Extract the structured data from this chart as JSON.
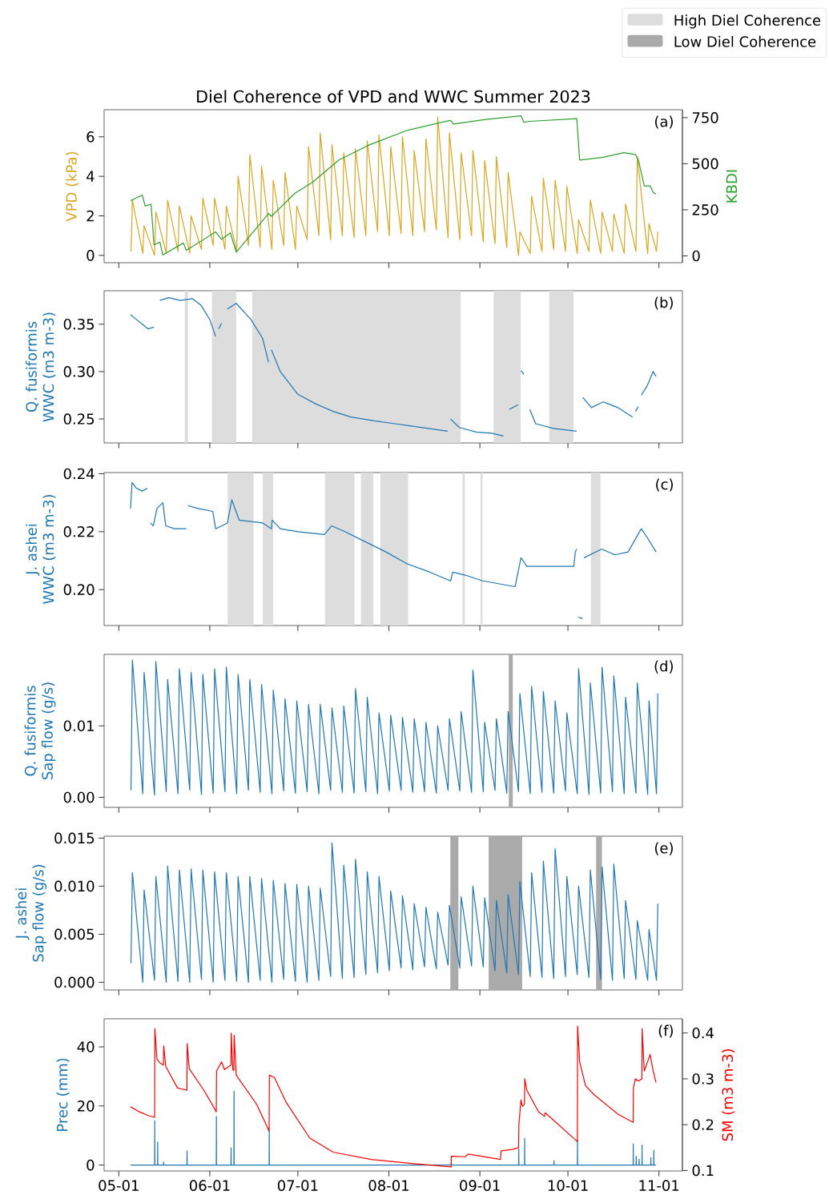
{
  "chart_data": [
    {
      "type": "line",
      "title": "Diel Coherence of VPD and WWC Summer 2023",
      "ylabel": "VPD (kPa)",
      "y2label": "KBDI",
      "annotations": [
        "(a)"
      ],
      "tick_labels": "y",
      "xlim": [
        "2023-04-26",
        "2023-11-09"
      ],
      "ylim": [
        -0.37,
        7.37
      ],
      "y2lim": [
        -37,
        793
      ],
      "xticks": [
        {
          "value": "2023-05-01",
          "label": null
        },
        {
          "value": "2023-06-01",
          "label": null
        },
        {
          "value": "2023-07-01",
          "label": null
        },
        {
          "value": "2023-08-01",
          "label": null
        },
        {
          "value": "2023-09-01",
          "label": null
        },
        {
          "value": "2023-10-01",
          "label": null
        },
        {
          "value": "2023-11-01",
          "label": null
        }
      ],
      "yticks": [
        0,
        2,
        4,
        6
      ],
      "y2ticks": [
        0,
        250,
        500,
        750
      ],
      "x": [
        "2023-05-05T04:00",
        "2023-05-05T15:00",
        "2023-05-09T04:00",
        "2023-05-09T15:00",
        "2023-05-13T04:00",
        "2023-05-13T15:00",
        "2023-05-17T04:00",
        "2023-05-17T15:00",
        "2023-05-21T04:00",
        "2023-05-21T15:00",
        "2023-05-25T04:00",
        "2023-05-25T15:00",
        "2023-05-29T04:00",
        "2023-05-29T15:00",
        "2023-06-02T04:00",
        "2023-06-02T15:00",
        "2023-06-06T04:00",
        "2023-06-06T15:00",
        "2023-06-10T04:00",
        "2023-06-10T15:00",
        "2023-06-14T04:00",
        "2023-06-14T15:00",
        "2023-06-18T04:00",
        "2023-06-18T15:00",
        "2023-06-22T04:00",
        "2023-06-22T15:00",
        "2023-06-26T04:00",
        "2023-06-26T15:00",
        "2023-06-30T04:00",
        "2023-06-30T15:00",
        "2023-07-04T04:00",
        "2023-07-04T15:00",
        "2023-07-08T04:00",
        "2023-07-08T15:00",
        "2023-07-12T04:00",
        "2023-07-12T15:00",
        "2023-07-16T04:00",
        "2023-07-16T15:00",
        "2023-07-20T04:00",
        "2023-07-20T15:00",
        "2023-07-24T04:00",
        "2023-07-24T15:00",
        "2023-07-28T04:00",
        "2023-07-28T15:00",
        "2023-08-01T04:00",
        "2023-08-01T15:00",
        "2023-08-05T04:00",
        "2023-08-05T15:00",
        "2023-08-09T04:00",
        "2023-08-09T15:00",
        "2023-08-13T04:00",
        "2023-08-13T15:00",
        "2023-08-17T04:00",
        "2023-08-17T15:00",
        "2023-08-21T04:00",
        "2023-08-21T15:00",
        "2023-08-25T04:00",
        "2023-08-25T15:00",
        "2023-08-29T04:00",
        "2023-08-29T15:00",
        "2023-09-02T04:00",
        "2023-09-02T15:00",
        "2023-09-06T04:00",
        "2023-09-06T15:00",
        "2023-09-10T04:00",
        "2023-09-10T15:00",
        "2023-09-14T04:00",
        "2023-09-14T15:00",
        "2023-09-18T04:00",
        "2023-09-18T15:00",
        "2023-09-22T04:00",
        "2023-09-22T15:00",
        "2023-09-26T04:00",
        "2023-09-26T15:00",
        "2023-09-30T04:00",
        "2023-09-30T15:00",
        "2023-10-04T04:00",
        "2023-10-04T15:00",
        "2023-10-08T04:00",
        "2023-10-08T15:00",
        "2023-10-12T04:00",
        "2023-10-12T15:00",
        "2023-10-16T04:00",
        "2023-10-16T15:00",
        "2023-10-20T04:00",
        "2023-10-20T15:00",
        "2023-10-24T04:00",
        "2023-10-24T15:00",
        "2023-10-28T04:00",
        "2023-10-28T15:00",
        "2023-10-31T04:00",
        "2023-10-31T15:00"
      ],
      "series": [
        {
          "color": "#daa520",
          "values": [
            0.2,
            2.8,
            0.1,
            1.5,
            0.0,
            2.2,
            0.1,
            2.8,
            0.2,
            2.5,
            0.1,
            2.0,
            0.3,
            2.9,
            0.5,
            2.9,
            0.3,
            2.5,
            0.2,
            4.0,
            0.5,
            5.1,
            0.4,
            4.5,
            0.3,
            3.8,
            0.5,
            4.2,
            0.3,
            2.5,
            0.8,
            5.5,
            1.0,
            6.2,
            0.8,
            5.6,
            1.0,
            5.2,
            0.9,
            5.4,
            1.0,
            5.8,
            1.2,
            6.1,
            1.0,
            5.5,
            1.1,
            6.0,
            1.0,
            5.3,
            1.2,
            5.9,
            1.3,
            7.0,
            0.9,
            6.2,
            0.8,
            5.2,
            1.0,
            5.3,
            0.7,
            4.8,
            0.6,
            5.0,
            0.4,
            4.2,
            0.0,
            1.2,
            0.1,
            3.0,
            0.2,
            3.9,
            0.3,
            3.8,
            0.2,
            3.5,
            0.1,
            1.8,
            0.2,
            2.8,
            0.1,
            2.2,
            0.2,
            2.1,
            0.1,
            2.6,
            0.2,
            5.0,
            0.1,
            1.6,
            0.2,
            1.2
          ]
        },
        {
          "color": "#2ca02c",
          "axis": "y2",
          "x": [
            "2023-05-05",
            "2023-05-09",
            "2023-05-10",
            "2023-05-12",
            "2023-05-13",
            "2023-05-15",
            "2023-05-16",
            "2023-05-23",
            "2023-05-24",
            "2023-06-03",
            "2023-06-05",
            "2023-06-08",
            "2023-06-10",
            "2023-06-21",
            "2023-06-22",
            "2023-06-30",
            "2023-07-06",
            "2023-07-15",
            "2023-07-25",
            "2023-08-07",
            "2023-08-19",
            "2023-08-22",
            "2023-08-23",
            "2023-09-03",
            "2023-09-15",
            "2023-09-16",
            "2023-09-18",
            "2023-10-04",
            "2023-10-05",
            "2023-10-13",
            "2023-10-20",
            "2023-10-24",
            "2023-10-25",
            "2023-10-27",
            "2023-10-29",
            "2023-10-30",
            "2023-10-31"
          ],
          "values": [
            300,
            330,
            270,
            280,
            60,
            75,
            5,
            70,
            30,
            130,
            90,
            125,
            20,
            230,
            215,
            340,
            400,
            520,
            600,
            680,
            725,
            735,
            715,
            740,
            760,
            725,
            730,
            745,
            520,
            535,
            560,
            550,
            520,
            380,
            380,
            345,
            335
          ]
        }
      ]
    },
    {
      "type": "line",
      "ylabel": "Q. fusiformis\nWWC (m3 m-3)",
      "annotations": [
        "(b)"
      ],
      "tick_labels": "y",
      "legend": "top right",
      "xlim": [
        "2023-04-26",
        "2023-11-09"
      ],
      "ylim": [
        0.2247,
        0.3853
      ],
      "xticks": [
        {
          "value": "2023-05-01",
          "label": null
        },
        {
          "value": "2023-06-01",
          "label": null
        },
        {
          "value": "2023-07-01",
          "label": null
        },
        {
          "value": "2023-08-01",
          "label": null
        },
        {
          "value": "2023-09-01",
          "label": null
        },
        {
          "value": "2023-10-01",
          "label": null
        },
        {
          "value": "2023-11-01",
          "label": null
        }
      ],
      "yticks": [
        {
          "value": 0.25,
          "label": "0.25"
        },
        {
          "value": 0.3,
          "label": "0.30"
        },
        {
          "value": 0.35,
          "label": "0.35"
        }
      ],
      "bands": [
        {
          "axis": "x",
          "from": "2023-05-23T10:00",
          "to": "2023-05-24T14:00",
          "color": "#dddddd",
          "label": "High Diel Coherence"
        },
        {
          "axis": "x",
          "from": "2023-06-01T17:00",
          "to": "2023-06-10T00:00",
          "color": "#dddddd"
        },
        {
          "axis": "x",
          "from": "2023-06-15T10:00",
          "to": "2023-08-25T12:00",
          "color": "#dddddd"
        },
        {
          "axis": "x",
          "from": "2023-09-05T17:00",
          "to": "2023-09-14T22:00",
          "color": "#dddddd"
        },
        {
          "axis": "x",
          "from": "2023-09-24T14:00",
          "to": "2023-10-02T22:00",
          "color": "#dddddd"
        }
      ],
      "series": [
        {
          "color": "#1f77b4",
          "x": [
            "2023-05-05",
            "2023-05-07",
            "2023-05-09",
            "2023-05-11",
            "2023-05-13",
            "2023-05-14",
            "2023-05-15",
            "2023-05-18",
            "2023-05-22",
            "2023-05-26",
            "2023-05-29",
            "2023-06-01",
            "2023-06-03",
            "2023-06-03T12:00",
            "2023-06-04",
            "2023-06-05",
            "2023-06-05T12:00",
            "2023-06-07",
            "2023-06-10",
            "2023-06-15",
            "2023-06-19",
            "2023-06-21",
            "2023-06-21T12:00",
            "2023-06-22",
            "2023-06-25",
            "2023-07-01",
            "2023-07-07",
            "2023-07-13",
            "2023-07-19",
            "2023-07-27",
            "2023-08-03",
            "2023-08-12",
            "2023-08-21",
            "2023-08-21T12:00",
            "2023-08-22",
            "2023-08-25",
            "2023-08-31",
            "2023-09-05",
            "2023-09-09",
            "2023-09-10T12:00",
            "2023-09-11",
            "2023-09-14",
            "2023-09-14T12:00",
            "2023-09-15",
            "2023-09-16",
            "2023-09-16T12:00",
            "2023-09-18",
            "2023-09-20",
            "2023-09-26",
            "2023-10-04",
            "2023-10-04T12:00",
            "2023-10-06",
            "2023-10-09",
            "2023-10-13",
            "2023-10-18",
            "2023-10-23",
            "2023-10-23T12:00",
            "2023-10-24",
            "2023-10-25",
            "2023-10-25T12:00",
            "2023-10-26",
            "2023-10-28",
            "2023-10-30",
            "2023-10-31"
          ],
          "values": [
            0.36,
            0.355,
            0.35,
            0.345,
            0.347,
            null,
            0.375,
            0.378,
            0.375,
            0.377,
            0.37,
            0.355,
            0.337,
            null,
            0.345,
            0.351,
            null,
            0.366,
            0.372,
            0.355,
            0.335,
            0.31,
            null,
            0.323,
            0.3,
            0.276,
            0.266,
            0.258,
            0.252,
            0.248,
            0.245,
            0.241,
            0.237,
            null,
            0.25,
            0.241,
            0.236,
            0.235,
            0.232,
            null,
            0.26,
            0.265,
            null,
            0.301,
            0.297,
            null,
            0.26,
            0.245,
            0.24,
            0.237,
            null,
            0.273,
            0.262,
            0.268,
            0.262,
            0.252,
            null,
            0.258,
            0.263,
            null,
            0.275,
            0.285,
            0.3,
            0.295
          ]
        }
      ]
    },
    {
      "type": "line",
      "ylabel": "J. ashei\nWWC (m3 m-3)",
      "annotations": [
        "(c)"
      ],
      "tick_labels": "y",
      "xlim": [
        "2023-04-26",
        "2023-11-09"
      ],
      "ylim": [
        0.1876,
        0.2404
      ],
      "xticks": [
        {
          "value": "2023-05-01",
          "label": null
        },
        {
          "value": "2023-06-01",
          "label": null
        },
        {
          "value": "2023-07-01",
          "label": null
        },
        {
          "value": "2023-08-01",
          "label": null
        },
        {
          "value": "2023-09-01",
          "label": null
        },
        {
          "value": "2023-10-01",
          "label": null
        },
        {
          "value": "2023-11-01",
          "label": null
        }
      ],
      "yticks": [
        {
          "value": 0.2,
          "label": "0.20"
        },
        {
          "value": 0.22,
          "label": "0.22"
        },
        {
          "value": 0.24,
          "label": "0.24"
        }
      ],
      "bands": [
        {
          "axis": "x",
          "from": "2023-06-07T02:00",
          "to": "2023-06-15T22:00",
          "color": "#dddddd"
        },
        {
          "axis": "x",
          "from": "2023-06-19T00:00",
          "to": "2023-06-22T14:00",
          "color": "#dddddd"
        },
        {
          "axis": "x",
          "from": "2023-07-10T05:00",
          "to": "2023-07-20T07:00",
          "color": "#dddddd"
        },
        {
          "axis": "x",
          "from": "2023-07-22T12:00",
          "to": "2023-07-26T17:00",
          "color": "#dddddd"
        },
        {
          "axis": "x",
          "from": "2023-07-29T02:00",
          "to": "2023-08-07T14:00",
          "color": "#dddddd"
        },
        {
          "axis": "x",
          "from": "2023-08-26T02:00",
          "to": "2023-08-26T22:00",
          "color": "#dddddd"
        },
        {
          "axis": "x",
          "from": "2023-09-01T05:00",
          "to": "2023-09-01T22:00",
          "color": "#dddddd"
        },
        {
          "axis": "x",
          "from": "2023-10-08T19:00",
          "to": "2023-10-12T02:00",
          "color": "#dddddd"
        }
      ],
      "series": [
        {
          "color": "#1f77b4",
          "x": [
            "2023-05-05",
            "2023-05-05T12:00",
            "2023-05-07",
            "2023-05-09",
            "2023-05-10T18:00",
            "2023-05-11T06:00",
            "2023-05-11T18:00",
            "2023-05-12T18:00",
            "2023-05-14",
            "2023-05-16",
            "2023-05-17",
            "2023-05-20",
            "2023-05-24",
            "2023-05-24T06:00",
            "2023-05-24T14:00",
            "2023-05-28",
            "2023-06-02",
            "2023-06-03",
            "2023-06-07",
            "2023-06-08T12:00",
            "2023-06-11",
            "2023-06-19",
            "2023-06-22",
            "2023-06-22T06:00",
            "2023-06-25",
            "2023-07-01",
            "2023-07-10",
            "2023-07-12T12:00",
            "2023-07-17",
            "2023-07-23",
            "2023-07-31",
            "2023-08-07",
            "2023-08-15",
            "2023-08-22",
            "2023-08-22T18:00",
            "2023-08-27",
            "2023-09-02",
            "2023-09-13",
            "2023-09-15",
            "2023-09-17",
            "2023-10-03",
            "2023-10-03T12:00",
            "2023-10-04",
            "2023-10-04T06:00",
            "2023-10-04T12:00",
            "2023-10-06T00:00",
            "2023-10-06T06:00",
            "2023-10-06T12:00",
            "2023-10-12T12:00",
            "2023-10-17",
            "2023-10-21T12:00",
            "2023-10-26",
            "2023-10-28",
            "2023-10-31"
          ],
          "values": [
            0.228,
            0.237,
            0.235,
            0.234,
            0.235,
            null,
            0.223,
            0.222,
            0.228,
            0.23,
            0.222,
            0.221,
            0.221,
            null,
            0.229,
            0.228,
            0.227,
            0.221,
            0.223,
            0.231,
            0.224,
            0.223,
            0.221,
            0.224,
            0.221,
            0.22,
            0.219,
            0.222,
            0.22,
            0.217,
            0.213,
            0.209,
            0.206,
            0.203,
            0.206,
            0.205,
            0.203,
            0.201,
            0.211,
            0.208,
            0.208,
            0.213,
            0.214,
            null,
            0.1905,
            0.19,
            null,
            0.211,
            0.214,
            0.212,
            0.213,
            0.221,
            0.218,
            0.213
          ]
        }
      ]
    },
    {
      "type": "line",
      "ylabel": "Q. fusiformis\nSap flow (g/s)",
      "annotations": [
        "(d)"
      ],
      "tick_labels": "y",
      "legend": "top right",
      "xlim": [
        "2023-04-26",
        "2023-11-09"
      ],
      "ylim": [
        -0.0014,
        0.02
      ],
      "xticks": [
        {
          "value": "2023-05-01",
          "label": null
        },
        {
          "value": "2023-06-01",
          "label": null
        },
        {
          "value": "2023-07-01",
          "label": null
        },
        {
          "value": "2023-08-01",
          "label": null
        },
        {
          "value": "2023-09-01",
          "label": null
        },
        {
          "value": "2023-10-01",
          "label": null
        },
        {
          "value": "2023-11-01",
          "label": null
        }
      ],
      "yticks": [
        {
          "value": 0,
          "label": "0.00"
        },
        {
          "value": 0.01,
          "label": "0.01"
        }
      ],
      "bands": [
        {
          "axis": "x",
          "from": "2023-09-10T20:00",
          "to": "2023-09-12T05:00",
          "color": "#aaaaaa",
          "label": "Low Diel Coherence"
        }
      ],
      "x": [
        "2023-05-05T04:00",
        "2023-05-05T15:00",
        "2023-05-09T04:00",
        "2023-05-09T15:00",
        "2023-05-13T04:00",
        "2023-05-13T15:00",
        "2023-05-17T04:00",
        "2023-05-17T15:00",
        "2023-05-21T04:00",
        "2023-05-21T15:00",
        "2023-05-25T04:00",
        "2023-05-25T15:00",
        "2023-05-29T04:00",
        "2023-05-29T15:00",
        "2023-06-02T04:00",
        "2023-06-02T15:00",
        "2023-06-06T04:00",
        "2023-06-06T15:00",
        "2023-06-10T04:00",
        "2023-06-10T15:00",
        "2023-06-14T04:00",
        "2023-06-14T15:00",
        "2023-06-18T04:00",
        "2023-06-18T15:00",
        "2023-06-22T04:00",
        "2023-06-22T15:00",
        "2023-06-26T04:00",
        "2023-06-26T15:00",
        "2023-06-30T04:00",
        "2023-06-30T15:00",
        "2023-07-04T04:00",
        "2023-07-04T15:00",
        "2023-07-08T04:00",
        "2023-07-08T15:00",
        "2023-07-12T04:00",
        "2023-07-12T15:00",
        "2023-07-16T04:00",
        "2023-07-16T15:00",
        "2023-07-20T04:00",
        "2023-07-20T15:00",
        "2023-07-24T04:00",
        "2023-07-24T15:00",
        "2023-07-28T04:00",
        "2023-07-28T15:00",
        "2023-08-01T04:00",
        "2023-08-01T15:00",
        "2023-08-05T04:00",
        "2023-08-05T15:00",
        "2023-08-09T04:00",
        "2023-08-09T15:00",
        "2023-08-13T04:00",
        "2023-08-13T15:00",
        "2023-08-17T04:00",
        "2023-08-17T15:00",
        "2023-08-21T04:00",
        "2023-08-21T15:00",
        "2023-08-25T04:00",
        "2023-08-25T15:00",
        "2023-08-29T04:00",
        "2023-08-29T15:00",
        "2023-09-02T04:00",
        "2023-09-02T15:00",
        "2023-09-06T04:00",
        "2023-09-06T15:00",
        "2023-09-10T04:00",
        "2023-09-10T15:00",
        "2023-09-14T04:00",
        "2023-09-14T15:00",
        "2023-09-18T04:00",
        "2023-09-18T15:00",
        "2023-09-22T04:00",
        "2023-09-22T15:00",
        "2023-09-26T04:00",
        "2023-09-26T15:00",
        "2023-09-30T04:00",
        "2023-09-30T15:00",
        "2023-10-04T04:00",
        "2023-10-04T15:00",
        "2023-10-08T04:00",
        "2023-10-08T15:00",
        "2023-10-12T04:00",
        "2023-10-12T15:00",
        "2023-10-16T04:00",
        "2023-10-16T15:00",
        "2023-10-20T04:00",
        "2023-10-20T15:00",
        "2023-10-24T04:00",
        "2023-10-24T15:00",
        "2023-10-28T04:00",
        "2023-10-28T15:00",
        "2023-10-31T04:00",
        "2023-10-31T15:00"
      ],
      "series": [
        {
          "color": "#1f77b4",
          "values": [
            0.001,
            0.0192,
            0.0005,
            0.0175,
            0.0003,
            0.019,
            0.0008,
            0.0165,
            0.0005,
            0.018,
            0.001,
            0.0175,
            0.0004,
            0.0172,
            0.0006,
            0.018,
            0.0008,
            0.0182,
            0.0005,
            0.0172,
            0.001,
            0.0165,
            0.0007,
            0.0158,
            0.0005,
            0.015,
            0.0009,
            0.0138,
            0.0006,
            0.0135,
            0.0008,
            0.013,
            0.0005,
            0.013,
            0.001,
            0.0125,
            0.0007,
            0.0128,
            0.0006,
            0.0152,
            0.0008,
            0.014,
            0.0005,
            0.0118,
            0.0009,
            0.0115,
            0.001,
            0.0112,
            0.0007,
            0.011,
            0.0008,
            0.0105,
            0.0006,
            0.01,
            0.001,
            0.011,
            0.0009,
            0.012,
            0.0007,
            0.0178,
            0.0008,
            0.0105,
            0.001,
            0.011,
            0.0006,
            0.012,
            0.0008,
            0.0145,
            0.0005,
            0.0155,
            0.0007,
            0.0148,
            0.0006,
            0.0135,
            0.0009,
            0.0118,
            0.0005,
            0.018,
            0.0004,
            0.016,
            0.0006,
            0.0182,
            0.0008,
            0.017,
            0.0005,
            0.014,
            0.0006,
            0.016,
            0.0004,
            0.0135,
            0.0005,
            0.0145
          ]
        }
      ]
    },
    {
      "type": "line",
      "ylabel": "J. ashei\nSap flow (g/s)",
      "annotations": [
        "(e)"
      ],
      "tick_labels": "y",
      "xlim": [
        "2023-04-26",
        "2023-11-09"
      ],
      "ylim": [
        -0.0008,
        0.0152
      ],
      "xticks": [
        {
          "value": "2023-05-01",
          "label": null
        },
        {
          "value": "2023-06-01",
          "label": null
        },
        {
          "value": "2023-07-01",
          "label": null
        },
        {
          "value": "2023-08-01",
          "label": null
        },
        {
          "value": "2023-09-01",
          "label": null
        },
        {
          "value": "2023-10-01",
          "label": null
        },
        {
          "value": "2023-11-01",
          "label": null
        }
      ],
      "yticks": [
        {
          "value": 0,
          "label": "0.000"
        },
        {
          "value": 0.005,
          "label": "0.005"
        },
        {
          "value": 0.01,
          "label": "0.010"
        },
        {
          "value": 0.015,
          "label": "0.015"
        }
      ],
      "bands": [
        {
          "axis": "x",
          "from": "2023-08-21T22:00",
          "to": "2023-08-24T17:00",
          "color": "#aaaaaa"
        },
        {
          "axis": "x",
          "from": "2023-09-04T00:00",
          "to": "2023-09-15T10:00",
          "color": "#aaaaaa"
        },
        {
          "axis": "x",
          "from": "2023-10-10T14:00",
          "to": "2023-10-12T14:00",
          "color": "#aaaaaa"
        }
      ],
      "x": [
        "2023-05-05T04:00",
        "2023-05-05T15:00",
        "2023-05-09T04:00",
        "2023-05-09T15:00",
        "2023-05-13T04:00",
        "2023-05-13T15:00",
        "2023-05-17T04:00",
        "2023-05-17T15:00",
        "2023-05-21T04:00",
        "2023-05-21T15:00",
        "2023-05-25T04:00",
        "2023-05-25T15:00",
        "2023-05-29T04:00",
        "2023-05-29T15:00",
        "2023-06-02T04:00",
        "2023-06-02T15:00",
        "2023-06-06T04:00",
        "2023-06-06T15:00",
        "2023-06-10T04:00",
        "2023-06-10T15:00",
        "2023-06-14T04:00",
        "2023-06-14T15:00",
        "2023-06-18T04:00",
        "2023-06-18T15:00",
        "2023-06-22T04:00",
        "2023-06-22T15:00",
        "2023-06-26T04:00",
        "2023-06-26T15:00",
        "2023-06-30T04:00",
        "2023-06-30T15:00",
        "2023-07-04T04:00",
        "2023-07-04T15:00",
        "2023-07-08T04:00",
        "2023-07-08T15:00",
        "2023-07-12T04:00",
        "2023-07-12T15:00",
        "2023-07-16T04:00",
        "2023-07-16T15:00",
        "2023-07-20T04:00",
        "2023-07-20T15:00",
        "2023-07-24T04:00",
        "2023-07-24T15:00",
        "2023-07-28T04:00",
        "2023-07-28T15:00",
        "2023-08-01T04:00",
        "2023-08-01T15:00",
        "2023-08-05T04:00",
        "2023-08-05T15:00",
        "2023-08-09T04:00",
        "2023-08-09T15:00",
        "2023-08-13T04:00",
        "2023-08-13T15:00",
        "2023-08-17T04:00",
        "2023-08-17T15:00",
        "2023-08-21T04:00",
        "2023-08-21T15:00",
        "2023-08-25T04:00",
        "2023-08-25T15:00",
        "2023-08-29T04:00",
        "2023-08-29T15:00",
        "2023-09-02T04:00",
        "2023-09-02T15:00",
        "2023-09-06T04:00",
        "2023-09-06T15:00",
        "2023-09-10T04:00",
        "2023-09-10T15:00",
        "2023-09-14T04:00",
        "2023-09-14T15:00",
        "2023-09-18T04:00",
        "2023-09-18T15:00",
        "2023-09-22T04:00",
        "2023-09-22T15:00",
        "2023-09-26T04:00",
        "2023-09-26T15:00",
        "2023-09-30T04:00",
        "2023-09-30T15:00",
        "2023-10-04T04:00",
        "2023-10-04T15:00",
        "2023-10-08T04:00",
        "2023-10-08T15:00",
        "2023-10-12T04:00",
        "2023-10-12T15:00",
        "2023-10-16T04:00",
        "2023-10-16T15:00",
        "2023-10-20T04:00",
        "2023-10-20T15:00",
        "2023-10-24T04:00",
        "2023-10-24T15:00",
        "2023-10-28T04:00",
        "2023-10-28T15:00",
        "2023-10-31T04:00",
        "2023-10-31T15:00"
      ],
      "series": [
        {
          "color": "#1f77b4",
          "values": [
            0.002,
            0.0114,
            0.0,
            0.0096,
            0.0002,
            0.011,
            0.0,
            0.0121,
            0.0001,
            0.0117,
            0.0,
            0.0118,
            0.0003,
            0.0117,
            0.0,
            0.0115,
            0.0002,
            0.0114,
            0.0001,
            0.011,
            0.0,
            0.011,
            0.0002,
            0.0108,
            0.0,
            0.0106,
            0.0003,
            0.0103,
            0.0001,
            0.0102,
            0.0,
            0.01,
            0.0002,
            0.0098,
            0.0006,
            0.0145,
            0.0004,
            0.0122,
            0.0005,
            0.0128,
            0.0008,
            0.0115,
            0.001,
            0.011,
            0.0012,
            0.0095,
            0.0015,
            0.009,
            0.0013,
            0.0082,
            0.0016,
            0.0078,
            0.0014,
            0.0073,
            0.0018,
            0.008,
            0.0015,
            0.0089,
            0.0017,
            0.01,
            0.0016,
            0.0088,
            0.0012,
            0.0085,
            0.001,
            0.0091,
            0.0008,
            0.0105,
            0.0006,
            0.0114,
            0.0005,
            0.0126,
            0.0004,
            0.0139,
            0.0006,
            0.011,
            0.0008,
            0.01,
            0.0005,
            0.0117,
            0.0003,
            0.012,
            0.0002,
            0.0123,
            0.0004,
            0.0085,
            0.0003,
            0.0064,
            0.0002,
            0.0055,
            0.0002,
            0.0082
          ]
        }
      ]
    },
    {
      "type": "line",
      "ylabel": "Prec (mm)",
      "y2label": "SM (m3 m-3)",
      "annotations": [
        "(f)"
      ],
      "xlim": [
        "2023-04-26",
        "2023-11-09"
      ],
      "ylim": [
        -2.0,
        49.5
      ],
      "y2lim": [
        0.099,
        0.431
      ],
      "xticks": [
        {
          "value": "2023-05-01",
          "label": "05-01"
        },
        {
          "value": "2023-06-01",
          "label": "06-01"
        },
        {
          "value": "2023-07-01",
          "label": "07-01"
        },
        {
          "value": "2023-08-01",
          "label": "08-01"
        },
        {
          "value": "2023-09-01",
          "label": "09-01"
        },
        {
          "value": "2023-10-01",
          "label": "10-01"
        },
        {
          "value": "2023-11-01",
          "label": "11-01"
        }
      ],
      "yticks": [
        0,
        20,
        40
      ],
      "y2ticks": [
        0.1,
        0.2,
        0.3,
        0.4
      ],
      "series": [
        {
          "color": "#1f77b4",
          "x": [
            "2023-05-05",
            "2023-05-13T05:00",
            "2023-05-13T06:00",
            "2023-05-13T07:00",
            "2023-05-14T05:00",
            "2023-05-14T06:00",
            "2023-05-14T07:00",
            "2023-05-16T05:00",
            "2023-05-16T06:00",
            "2023-05-16T07:00",
            "2023-05-24T05:00",
            "2023-05-24T06:00",
            "2023-05-24T07:00",
            "2023-06-03T05:00",
            "2023-06-03T06:00",
            "2023-06-03T07:00",
            "2023-06-08T05:00",
            "2023-06-08T06:00",
            "2023-06-08T07:00",
            "2023-06-09T05:00",
            "2023-06-09T06:00",
            "2023-06-09T07:00",
            "2023-06-21T05:00",
            "2023-06-21T06:00",
            "2023-06-21T07:00",
            "2023-08-22T05:00",
            "2023-08-22T06:00",
            "2023-08-22T07:00",
            "2023-09-14T05:00",
            "2023-09-14T06:00",
            "2023-09-14T07:00",
            "2023-09-16T05:00",
            "2023-09-16T06:00",
            "2023-09-16T07:00",
            "2023-09-26T05:00",
            "2023-09-26T06:00",
            "2023-09-26T07:00",
            "2023-10-04T05:00",
            "2023-10-04T06:00",
            "2023-10-04T07:00",
            "2023-10-23T05:00",
            "2023-10-23T06:00",
            "2023-10-23T07:00",
            "2023-10-24T05:00",
            "2023-10-24T06:00",
            "2023-10-24T07:00",
            "2023-10-25T05:00",
            "2023-10-25T06:00",
            "2023-10-25T07:00",
            "2023-10-26T05:00",
            "2023-10-26T06:00",
            "2023-10-26T07:00",
            "2023-10-29T05:00",
            "2023-10-29T06:00",
            "2023-10-29T07:00",
            "2023-10-30T05:00",
            "2023-10-30T06:00",
            "2023-10-30T07:00",
            "2023-10-31"
          ],
          "values": [
            0,
            0,
            15.0,
            0,
            0,
            7.8,
            0,
            0,
            1.0,
            0,
            0,
            4.8,
            0,
            0,
            16.5,
            0,
            0,
            5.8,
            0,
            0,
            25.0,
            0,
            0,
            11.8,
            0,
            0,
            0.5,
            0,
            0,
            5.5,
            0,
            0,
            9.0,
            0,
            0,
            1.5,
            0,
            0,
            8.5,
            0,
            0,
            7.2,
            0,
            0,
            3.0,
            0,
            0,
            2.0,
            0,
            0,
            6.8,
            0,
            0,
            2.5,
            0,
            0,
            5.0,
            0,
            0
          ]
        },
        {
          "color": "#ff0000",
          "axis": "y2",
          "x": [
            "2023-05-05",
            "2023-05-08",
            "2023-05-11",
            "2023-05-13T05:00",
            "2023-05-13T07:00",
            "2023-05-14",
            "2023-05-15",
            "2023-05-16T05:00",
            "2023-05-16T07:00",
            "2023-05-17",
            "2023-05-21",
            "2023-05-24T05:00",
            "2023-05-24T07:00",
            "2023-05-25",
            "2023-05-30",
            "2023-06-03T05:00",
            "2023-06-03T07:00",
            "2023-06-05",
            "2023-06-06",
            "2023-06-08T05:00",
            "2023-06-08T07:00",
            "2023-06-08T20:00",
            "2023-06-09T05:00",
            "2023-06-09T07:00",
            "2023-06-10",
            "2023-06-17",
            "2023-06-21T05:00",
            "2023-06-21T07:00",
            "2023-06-23",
            "2023-06-27",
            "2023-07-05",
            "2023-07-13",
            "2023-07-26",
            "2023-08-06",
            "2023-08-22T05:00",
            "2023-08-22T07:00",
            "2023-08-27",
            "2023-08-28",
            "2023-09-08",
            "2023-09-08T06:00",
            "2023-09-12",
            "2023-09-14T05:00",
            "2023-09-14T07:00",
            "2023-09-15",
            "2023-09-15T12:00",
            "2023-09-16T05:00",
            "2023-09-16T07:00",
            "2023-09-17",
            "2023-09-21",
            "2023-09-23",
            "2023-09-23T06:00",
            "2023-10-04T05:00",
            "2023-10-04T07:00",
            "2023-10-05",
            "2023-10-07",
            "2023-10-10",
            "2023-10-18",
            "2023-10-23T05:00",
            "2023-10-23T07:00",
            "2023-10-24",
            "2023-10-25",
            "2023-10-26T05:00",
            "2023-10-26T07:00",
            "2023-10-27",
            "2023-10-29",
            "2023-10-30",
            "2023-10-31"
          ],
          "values": [
            0.239,
            0.228,
            0.22,
            0.216,
            0.41,
            0.343,
            0.335,
            0.33,
            0.372,
            0.327,
            0.28,
            0.275,
            0.377,
            0.322,
            0.275,
            0.228,
            0.317,
            0.337,
            0.32,
            0.33,
            0.4,
            0.32,
            0.318,
            0.395,
            0.308,
            0.244,
            0.186,
            0.308,
            0.303,
            0.249,
            0.171,
            0.14,
            0.124,
            0.117,
            0.108,
            0.131,
            0.13,
            0.136,
            0.124,
            0.143,
            0.146,
            0.15,
            0.2,
            0.254,
            0.24,
            0.245,
            0.3,
            0.275,
            0.228,
            0.218,
            0.226,
            0.163,
            0.415,
            0.337,
            0.285,
            0.265,
            0.223,
            0.205,
            0.28,
            0.3,
            0.295,
            0.3,
            0.41,
            0.317,
            0.353,
            0.318,
            0.292
          ]
        }
      ]
    }
  ]
}
